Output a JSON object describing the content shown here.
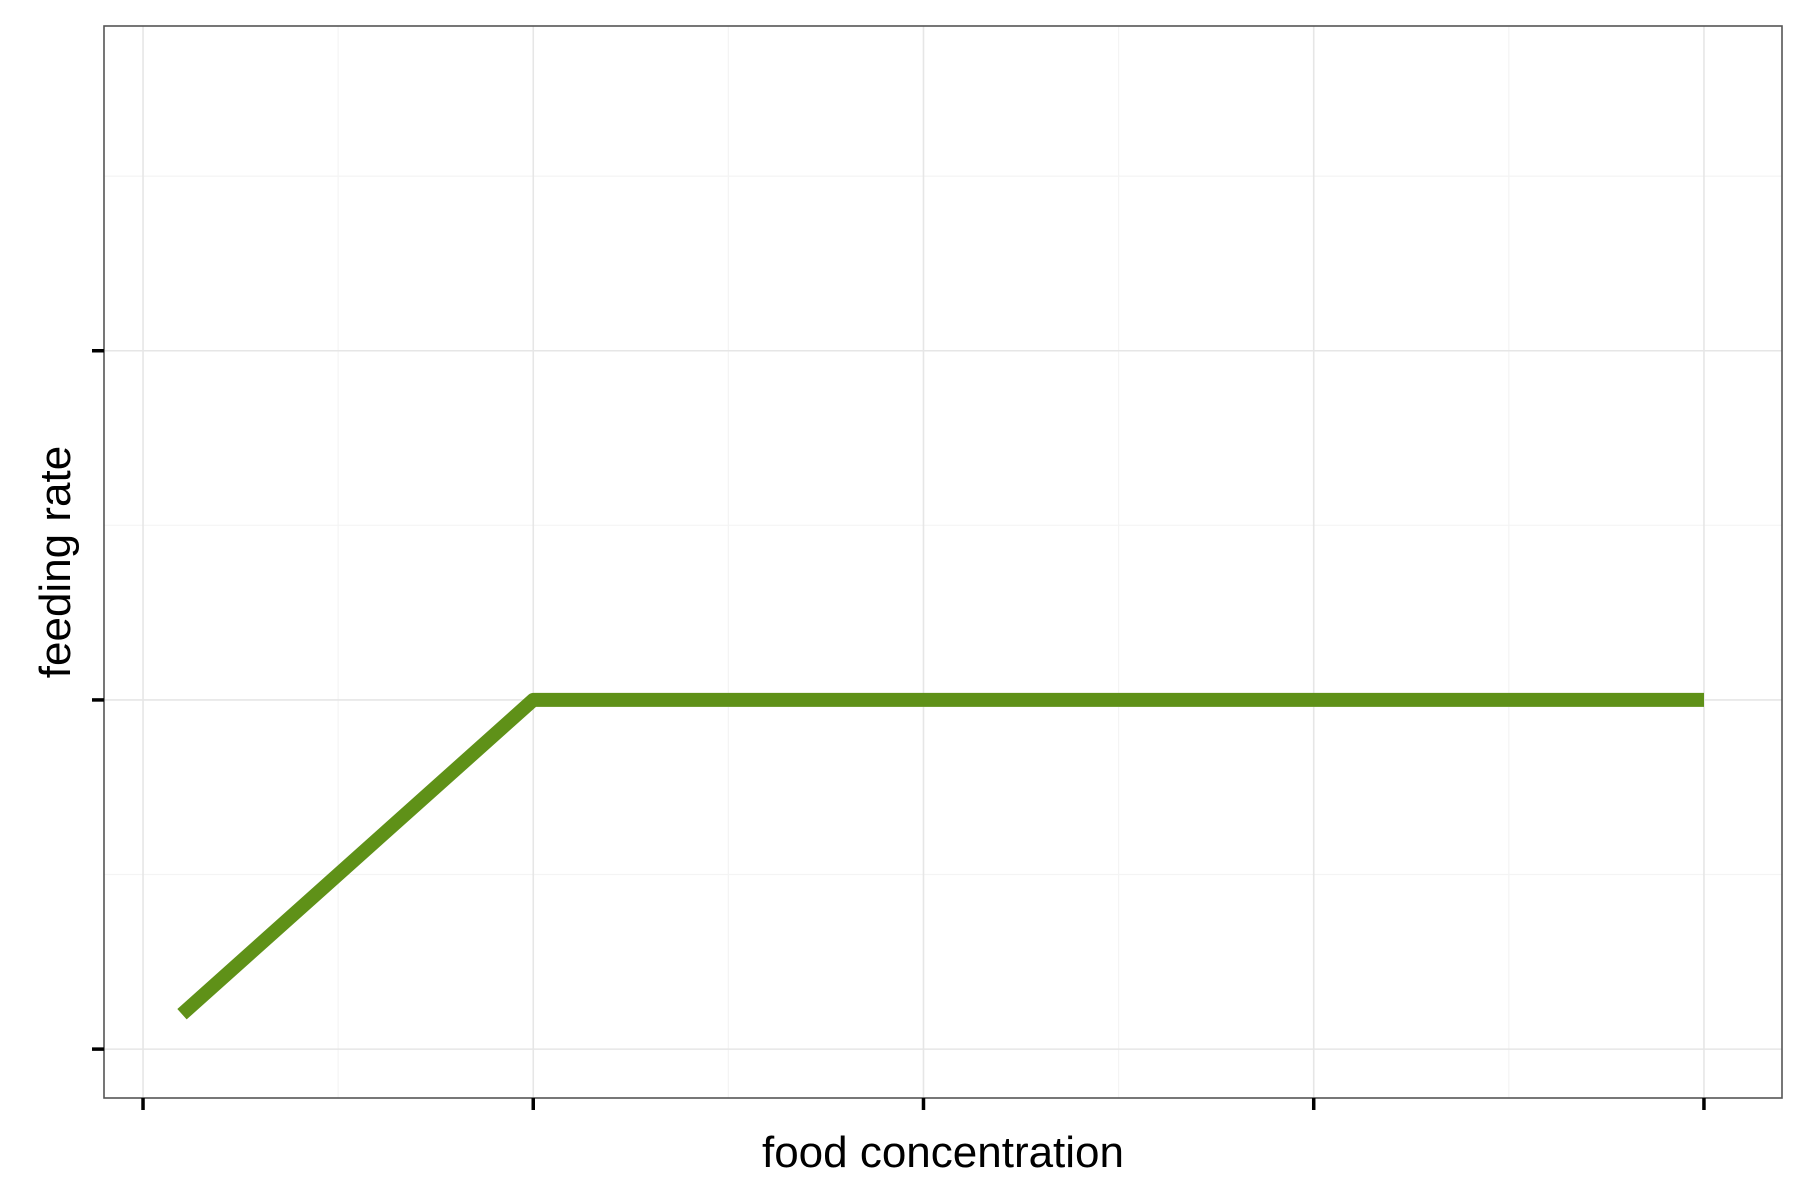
{
  "chart_data": {
    "type": "line",
    "title": "",
    "xlabel": "food concentration",
    "ylabel": "feeding rate",
    "xlim": [
      -0.1,
      4.2
    ],
    "ylim": [
      -0.14,
      2.93
    ],
    "x_major_ticks": [
      0,
      1,
      2,
      3,
      4
    ],
    "x_minor_ticks": [
      0.5,
      1.5,
      2.5,
      3.5
    ],
    "y_major_ticks": [
      0,
      1,
      2
    ],
    "y_minor_ticks": [
      0.5,
      1.5,
      2.5
    ],
    "tick_labels_shown": false,
    "grid": true,
    "legend": "none",
    "series": [
      {
        "color": "#5f9118",
        "x": [
          0.1,
          1,
          4
        ],
        "y": [
          0.1,
          1,
          1
        ]
      }
    ]
  }
}
